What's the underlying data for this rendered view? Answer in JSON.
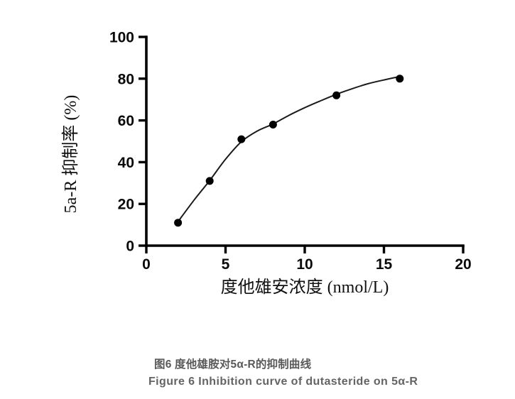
{
  "page": {
    "background": "#ffffff"
  },
  "chart_data": {
    "type": "scatter",
    "title": "",
    "xlabel": "度他雄安浓度 (nmol/L)",
    "ylabel": "5a-R 抑制率 (%)",
    "xlim": [
      0,
      20
    ],
    "ylim": [
      0,
      100
    ],
    "x_ticks": [
      0,
      5,
      10,
      15,
      20
    ],
    "y_ticks": [
      0,
      20,
      40,
      60,
      80,
      100
    ],
    "grid": false,
    "legend": "none",
    "axis_color": "#000000",
    "series": [
      {
        "name": "dutasteride-inhibition-points",
        "marker": "filled-circle",
        "marker_radius": 5.5,
        "color": "#000000",
        "x": [
          2,
          4,
          6,
          8,
          12,
          16
        ],
        "y": [
          11,
          31,
          51,
          58,
          72,
          80
        ]
      }
    ],
    "fit_curve": {
      "name": "fitted-inhibition-curve",
      "color": "#1a1a1a",
      "width": 2,
      "points": [
        [
          2,
          11.5
        ],
        [
          3,
          21.7
        ],
        [
          4,
          31.2
        ],
        [
          5,
          41.4
        ],
        [
          6,
          49.8
        ],
        [
          7,
          54.9
        ],
        [
          8,
          58.3
        ],
        [
          9,
          62.4
        ],
        [
          10,
          66.1
        ],
        [
          11,
          69.4
        ],
        [
          12,
          72.5
        ],
        [
          13,
          75.2
        ],
        [
          14,
          77.6
        ],
        [
          15,
          79.4
        ],
        [
          16,
          81.0
        ]
      ]
    }
  },
  "caption": {
    "line1": "图6 度他雄胺对5α-R的抑制曲线",
    "line1_color": "#595959",
    "line2": "Figure 6 Inhibition curve of dutasteride on 5α-R",
    "line2_color": "#646464"
  }
}
